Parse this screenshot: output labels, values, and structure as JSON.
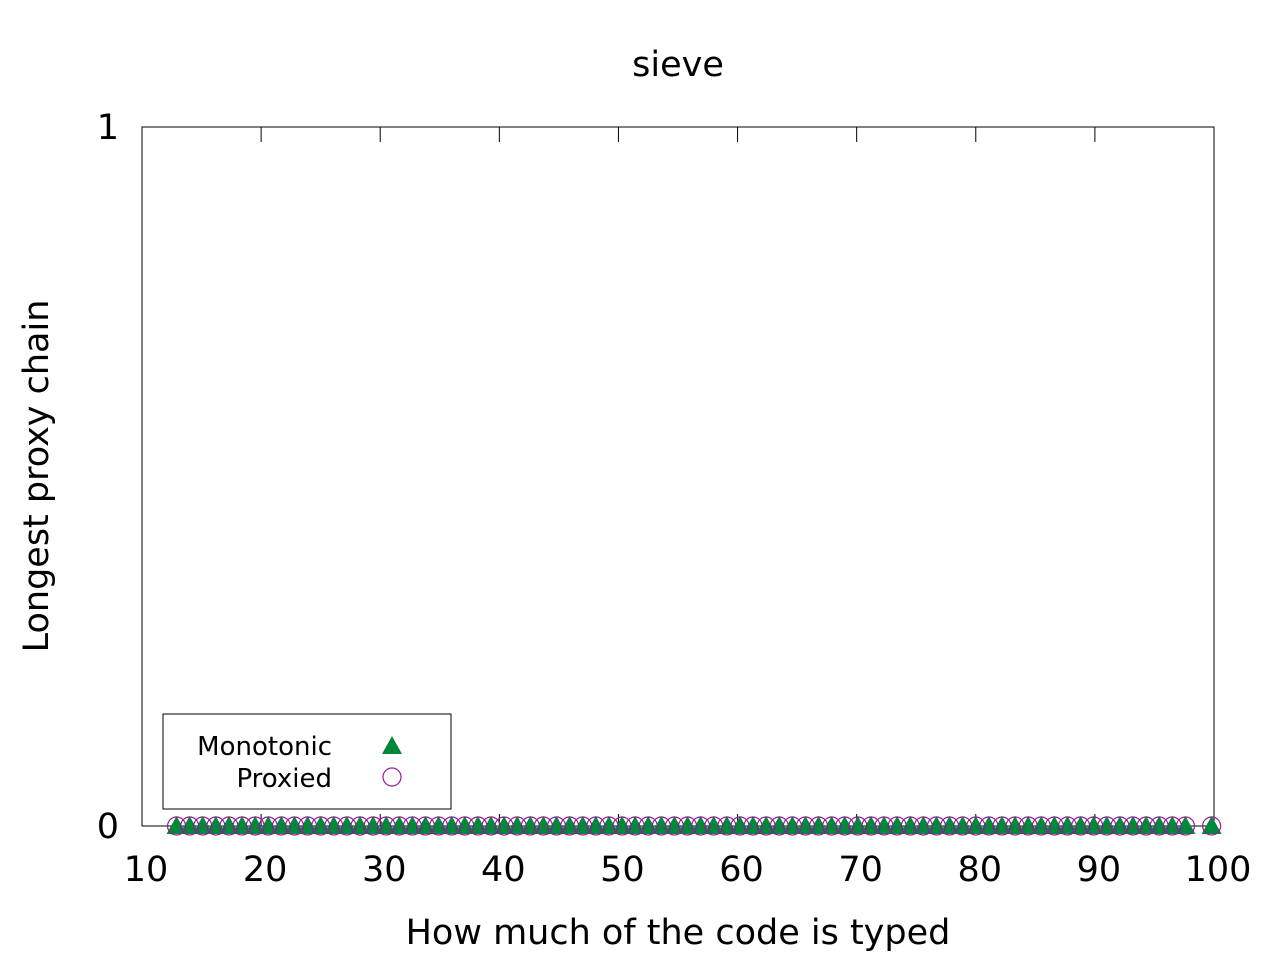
{
  "chart_data": {
    "type": "scatter",
    "title": "sieve",
    "xlabel": "How much of the code is typed",
    "ylabel": "Longest proxy chain",
    "xlim": [
      10,
      100
    ],
    "ylim": [
      0,
      1
    ],
    "xticks": [
      "10",
      "20",
      "30",
      "40",
      "50",
      "60",
      "70",
      "80",
      "90",
      "100"
    ],
    "yticks": [
      "0",
      "1"
    ],
    "grid": false,
    "legend_position": "bottom-left",
    "series": [
      {
        "name": "Monotonic",
        "marker": "filled-triangle",
        "color": "#00883a",
        "x": [
          12.9,
          14.0,
          15.1,
          16.2,
          17.3,
          18.4,
          19.5,
          20.6,
          21.7,
          22.8,
          23.9,
          25.0,
          26.1,
          27.2,
          28.3,
          29.4,
          30.5,
          31.6,
          32.7,
          33.8,
          34.9,
          36.0,
          37.1,
          38.2,
          39.3,
          40.4,
          41.5,
          42.6,
          43.7,
          44.8,
          45.9,
          47.0,
          48.1,
          49.2,
          50.3,
          51.4,
          52.5,
          53.6,
          54.7,
          55.8,
          56.9,
          58.0,
          59.1,
          60.2,
          61.3,
          62.4,
          63.5,
          64.6,
          65.7,
          66.8,
          67.9,
          69.0,
          70.1,
          71.2,
          72.3,
          73.4,
          74.5,
          75.6,
          76.7,
          77.8,
          78.9,
          80.0,
          81.1,
          82.2,
          83.3,
          84.4,
          85.5,
          86.6,
          87.7,
          88.8,
          89.9,
          91.0,
          92.1,
          93.2,
          94.3,
          95.4,
          96.5,
          97.6,
          99.8
        ],
        "y": [
          0,
          0,
          0,
          0,
          0,
          0,
          0,
          0,
          0,
          0,
          0,
          0,
          0,
          0,
          0,
          0,
          0,
          0,
          0,
          0,
          0,
          0,
          0,
          0,
          0,
          0,
          0,
          0,
          0,
          0,
          0,
          0,
          0,
          0,
          0,
          0,
          0,
          0,
          0,
          0,
          0,
          0,
          0,
          0,
          0,
          0,
          0,
          0,
          0,
          0,
          0,
          0,
          0,
          0,
          0,
          0,
          0,
          0,
          0,
          0,
          0,
          0,
          0,
          0,
          0,
          0,
          0,
          0,
          0,
          0,
          0,
          0,
          0,
          0,
          0,
          0,
          0,
          0,
          0
        ]
      },
      {
        "name": "Proxied",
        "marker": "open-circle",
        "color": "#94179b",
        "x": [
          12.9,
          14.0,
          15.1,
          16.2,
          17.3,
          18.4,
          19.5,
          20.6,
          21.7,
          22.8,
          23.9,
          25.0,
          26.1,
          27.2,
          28.3,
          29.4,
          30.5,
          31.6,
          32.7,
          33.8,
          34.9,
          36.0,
          37.1,
          38.2,
          39.3,
          40.4,
          41.5,
          42.6,
          43.7,
          44.8,
          45.9,
          47.0,
          48.1,
          49.2,
          50.3,
          51.4,
          52.5,
          53.6,
          54.7,
          55.8,
          56.9,
          58.0,
          59.1,
          60.2,
          61.3,
          62.4,
          63.5,
          64.6,
          65.7,
          66.8,
          67.9,
          69.0,
          70.1,
          71.2,
          72.3,
          73.4,
          74.5,
          75.6,
          76.7,
          77.8,
          78.9,
          80.0,
          81.1,
          82.2,
          83.3,
          84.4,
          85.5,
          86.6,
          87.7,
          88.8,
          89.9,
          91.0,
          92.1,
          93.2,
          94.3,
          95.4,
          96.5,
          97.6,
          99.8
        ],
        "y": [
          0,
          0,
          0,
          0,
          0,
          0,
          0,
          0,
          0,
          0,
          0,
          0,
          0,
          0,
          0,
          0,
          0,
          0,
          0,
          0,
          0,
          0,
          0,
          0,
          0,
          0,
          0,
          0,
          0,
          0,
          0,
          0,
          0,
          0,
          0,
          0,
          0,
          0,
          0,
          0,
          0,
          0,
          0,
          0,
          0,
          0,
          0,
          0,
          0,
          0,
          0,
          0,
          0,
          0,
          0,
          0,
          0,
          0,
          0,
          0,
          0,
          0,
          0,
          0,
          0,
          0,
          0,
          0,
          0,
          0,
          0,
          0,
          0,
          0,
          0,
          0,
          0,
          0,
          0
        ]
      }
    ]
  }
}
